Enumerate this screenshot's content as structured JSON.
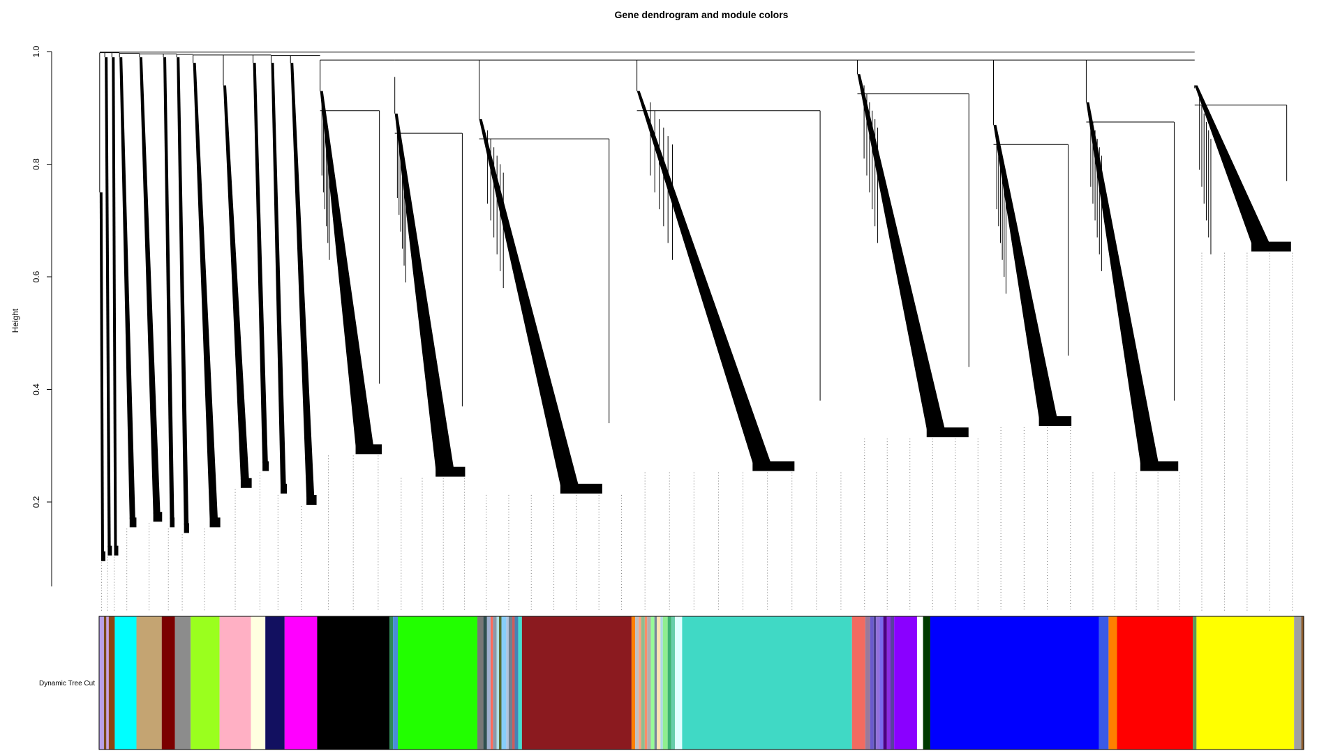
{
  "chart_data": {
    "type": "dendrogram",
    "title": "Gene dendrogram and module colors",
    "xlabel": "",
    "ylabel": "Height",
    "ylim": [
      0.05,
      1.0
    ],
    "yticks": [
      0.2,
      0.4,
      0.6,
      0.8,
      1.0
    ],
    "ytick_labels": [
      "0.2",
      "0.4",
      "0.6",
      "0.8",
      "1.0"
    ],
    "color_row_label": "Dynamic Tree Cut",
    "clusters": [
      {
        "start": 0.0,
        "end": 0.004,
        "top": 0.75,
        "bottom": 0.1,
        "merge": 0.998
      },
      {
        "start": 0.004,
        "end": 0.01,
        "top": 0.99,
        "bottom": 0.11,
        "merge": 0.998
      },
      {
        "start": 0.01,
        "end": 0.015,
        "top": 0.99,
        "bottom": 0.11,
        "merge": 0.998
      },
      {
        "start": 0.015,
        "end": 0.031,
        "top": 0.99,
        "bottom": 0.16,
        "merge": 0.997
      },
      {
        "start": 0.031,
        "end": 0.052,
        "top": 0.99,
        "bottom": 0.17,
        "merge": 0.996
      },
      {
        "start": 0.052,
        "end": 0.063,
        "top": 0.99,
        "bottom": 0.16,
        "merge": 0.996
      },
      {
        "start": 0.063,
        "end": 0.075,
        "top": 0.99,
        "bottom": 0.15,
        "merge": 0.995
      },
      {
        "start": 0.075,
        "end": 0.1,
        "top": 0.98,
        "bottom": 0.16,
        "merge": 0.994
      },
      {
        "start": 0.1,
        "end": 0.126,
        "top": 0.94,
        "bottom": 0.23,
        "merge": 0.994
      },
      {
        "start": 0.126,
        "end": 0.141,
        "top": 0.98,
        "bottom": 0.26,
        "merge": 0.994
      },
      {
        "start": 0.141,
        "end": 0.156,
        "top": 0.98,
        "bottom": 0.22,
        "merge": 0.993
      },
      {
        "start": 0.156,
        "end": 0.18,
        "top": 0.98,
        "bottom": 0.2,
        "merge": 0.993
      },
      {
        "start": 0.18,
        "end": 0.242,
        "top": 0.93,
        "bottom": 0.29,
        "merge": 0.985
      },
      {
        "start": 0.242,
        "end": 0.312,
        "top": 0.89,
        "bottom": 0.25,
        "merge": 0.955
      },
      {
        "start": 0.312,
        "end": 0.443,
        "top": 0.88,
        "bottom": 0.22,
        "merge": 0.985
      },
      {
        "start": 0.443,
        "end": 0.626,
        "top": 0.93,
        "bottom": 0.26,
        "merge": 0.985
      },
      {
        "start": 0.626,
        "end": 0.739,
        "top": 0.96,
        "bottom": 0.32,
        "merge": 0.985
      },
      {
        "start": 0.739,
        "end": 0.816,
        "top": 0.87,
        "bottom": 0.34,
        "merge": 0.985
      },
      {
        "start": 0.816,
        "end": 0.906,
        "top": 0.91,
        "bottom": 0.26,
        "merge": 0.985
      },
      {
        "start": 0.906,
        "end": 1.0,
        "top": 0.94,
        "bottom": 0.65,
        "merge": 0.935
      }
    ],
    "module_colors": [
      [
        "#b8a0e8",
        0.0,
        0.004
      ],
      [
        "#7a4a1a",
        0.004,
        0.006
      ],
      [
        "#c6a0e8",
        0.006,
        0.008
      ],
      [
        "#8b4513",
        0.008,
        0.013
      ],
      [
        "#00ffff",
        0.013,
        0.031
      ],
      [
        "#c4a472",
        0.031,
        0.052
      ],
      [
        "#7b0000",
        0.052,
        0.063
      ],
      [
        "#8c8c8c",
        0.063,
        0.076
      ],
      [
        "#9aff1e",
        0.076,
        0.1
      ],
      [
        "#ffb0c4",
        0.1,
        0.126
      ],
      [
        "#ffffe0",
        0.126,
        0.138
      ],
      [
        "#121060",
        0.138,
        0.154
      ],
      [
        "#ff00ff",
        0.154,
        0.181
      ],
      [
        "#000000",
        0.181,
        0.241
      ],
      [
        "#2e8b57",
        0.241,
        0.244
      ],
      [
        "#4a8cd8",
        0.244,
        0.248
      ],
      [
        "#22ff00",
        0.248,
        0.314
      ],
      [
        "#777777",
        0.314,
        0.319
      ],
      [
        "#2f4f4f",
        0.319,
        0.322
      ],
      [
        "#9fb0d0",
        0.322,
        0.325
      ],
      [
        "#ff6a5a",
        0.325,
        0.327
      ],
      [
        "#8899aa",
        0.327,
        0.33
      ],
      [
        "#b0e0e6",
        0.33,
        0.332
      ],
      [
        "#556b2f",
        0.332,
        0.334
      ],
      [
        "#87cefa",
        0.334,
        0.338
      ],
      [
        "#b0c4de",
        0.338,
        0.34
      ],
      [
        "#708090",
        0.34,
        0.343
      ],
      [
        "#cd5c5c",
        0.343,
        0.345
      ],
      [
        "#4682b4",
        0.345,
        0.348
      ],
      [
        "#40e0d0",
        0.348,
        0.351
      ],
      [
        "#8b1a1f",
        0.351,
        0.442
      ],
      [
        "#ff7f00",
        0.442,
        0.445
      ],
      [
        "#c0c0c0",
        0.445,
        0.448
      ],
      [
        "#ffa07a",
        0.448,
        0.45
      ],
      [
        "#8fbc8f",
        0.45,
        0.453
      ],
      [
        "#ff8c69",
        0.453,
        0.455
      ],
      [
        "#b0b0b0",
        0.455,
        0.458
      ],
      [
        "#98fb98",
        0.458,
        0.461
      ],
      [
        "#778899",
        0.461,
        0.463
      ],
      [
        "#ffe4b5",
        0.463,
        0.466
      ],
      [
        "#add8e6",
        0.466,
        0.468
      ],
      [
        "#90ee90",
        0.468,
        0.472
      ],
      [
        "#3cb371",
        0.472,
        0.475
      ],
      [
        "#66cdaa",
        0.475,
        0.478
      ],
      [
        "#e0ffff",
        0.478,
        0.484
      ],
      [
        "#40d9c5",
        0.484,
        0.625
      ],
      [
        "#f26b60",
        0.625,
        0.636
      ],
      [
        "#9a7a9a",
        0.636,
        0.64
      ],
      [
        "#6a5acd",
        0.64,
        0.643
      ],
      [
        "#483d8b",
        0.643,
        0.645
      ],
      [
        "#9370db",
        0.645,
        0.648
      ],
      [
        "#7b68ee",
        0.648,
        0.651
      ],
      [
        "#4b0082",
        0.651,
        0.654
      ],
      [
        "#8a2be2",
        0.654,
        0.657
      ],
      [
        "#5a3ea0",
        0.657,
        0.66
      ],
      [
        "#8a00ff",
        0.66,
        0.679
      ],
      [
        "#ffffff",
        0.679,
        0.684
      ],
      [
        "#003a00",
        0.684,
        0.69
      ],
      [
        "#0000ff",
        0.69,
        0.83
      ],
      [
        "#3a5ae8",
        0.83,
        0.838
      ],
      [
        "#ff7f00",
        0.838,
        0.845
      ],
      [
        "#ff0000",
        0.845,
        0.908
      ],
      [
        "#5a9a5a",
        0.908,
        0.911
      ],
      [
        "#ffff00",
        0.911,
        0.992
      ],
      [
        "#a0a0a0",
        0.992,
        0.998
      ],
      [
        "#8b5a2b",
        0.998,
        1.0
      ]
    ]
  }
}
